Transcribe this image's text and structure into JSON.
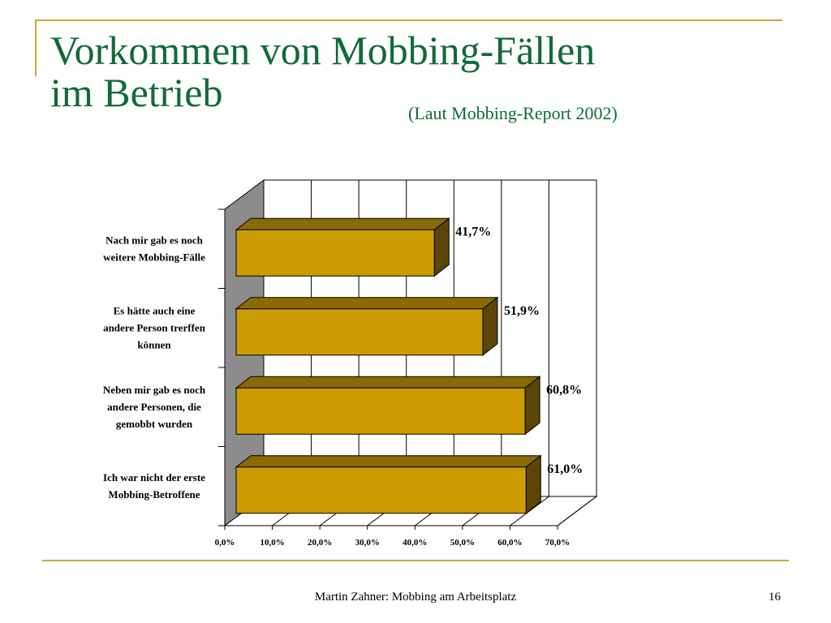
{
  "slide": {
    "title_line1": "Vorkommen von Mobbing-Fällen",
    "title_line2": "im Betrieb",
    "subtitle": "(Laut Mobbing-Report  2002)",
    "footer": "Martin Zahner: Mobbing am Arbeitsplatz",
    "page_number": "16"
  },
  "chart_data": {
    "type": "bar",
    "orientation": "horizontal",
    "style": "3d",
    "categories": [
      [
        "Nach mir gab es noch",
        "weitere Mobbing-Fälle"
      ],
      [
        "Es hätte auch eine",
        "andere Person trerffen",
        "können"
      ],
      [
        "Neben mir gab es noch",
        "andere Personen, die",
        "gemobbt wurden"
      ],
      [
        "Ich war nicht der erste",
        "Mobbing-Betroffene"
      ]
    ],
    "values": [
      41.7,
      51.9,
      60.8,
      61.0
    ],
    "value_labels": [
      "41,7%",
      "51,9%",
      "60,8%",
      "61,0%"
    ],
    "x_ticks": [
      "0,0%",
      "10,0%",
      "20,0%",
      "30,0%",
      "40,0%",
      "50,0%",
      "60,0%",
      "70,0%"
    ],
    "xlim": [
      0,
      70
    ],
    "grid": true,
    "legend": "none",
    "colors": {
      "bar_front": "#cc9b00",
      "bar_top": "#8a6a05",
      "bar_side": "#5a4608",
      "side_wall": "#8c8c8c"
    }
  }
}
